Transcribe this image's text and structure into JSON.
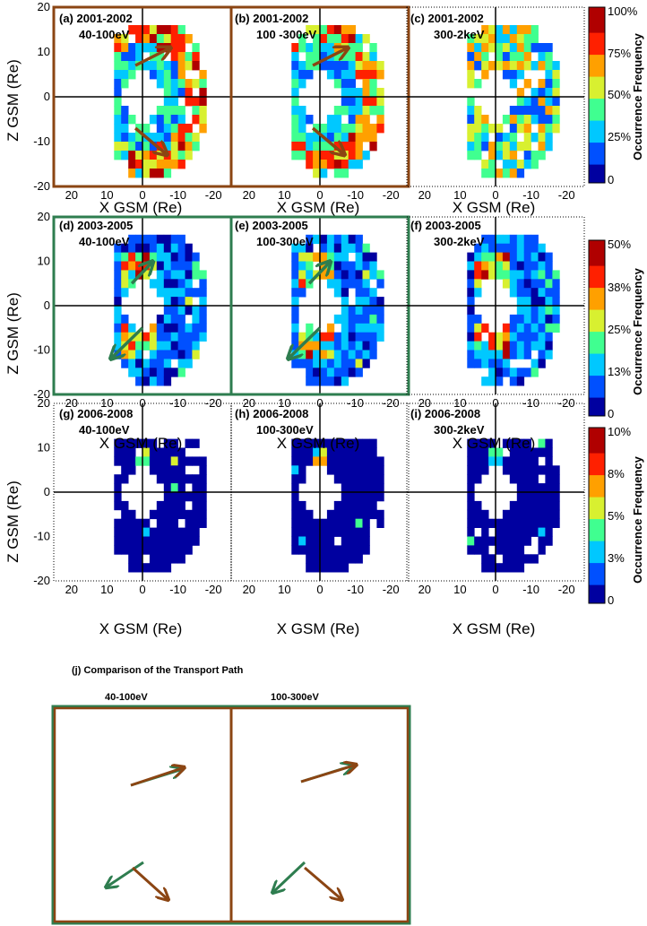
{
  "chart_data": {
    "type": "heatmap",
    "xlabel": "X GSM (Re)",
    "ylabel": "Z GSM (Re)",
    "x_ticks": [
      "20",
      "10",
      "0",
      "-10",
      "-20"
    ],
    "y_ticks": [
      "20",
      "10",
      "0",
      "-10",
      "-20"
    ],
    "xlim": [
      25,
      -25
    ],
    "ylim": [
      -20,
      20
    ],
    "colorbar_label": "Occurrence Frequency",
    "colorbar_ticks_row1": [
      "100%",
      "75%",
      "50%",
      "25%",
      "0"
    ],
    "colorbar_ticks_row2": [
      "50%",
      "38%",
      "25%",
      "13%",
      "0"
    ],
    "colorbar_ticks_row3": [
      "10%",
      "8%",
      "5%",
      "3%",
      "0"
    ],
    "colormap": [
      "#0000a0",
      "#0050ff",
      "#00c8ff",
      "#40ff90",
      "#d8f030",
      "#ffa000",
      "#ff2000",
      "#b00000"
    ],
    "panels": [
      {
        "label": "(a) 2001-2002",
        "energy": "40-100eV"
      },
      {
        "label": "(b) 2001-2002",
        "energy": "100 -300eV"
      },
      {
        "label": "(c) 2001-2002",
        "energy": "300-2keV"
      },
      {
        "label": "(d) 2003-2005",
        "energy": "40-100eV"
      },
      {
        "label": "(e) 2003-2005",
        "energy": "100-300eV"
      },
      {
        "label": "(f) 2003-2005",
        "energy": "300-2keV"
      },
      {
        "label": "(g) 2006-2008",
        "energy": "40-100eV"
      },
      {
        "label": "(h) 2006-2008",
        "energy": "100-300eV"
      },
      {
        "label": "(i) 2006-2008",
        "energy": "300-2keV"
      }
    ],
    "comparison": {
      "title": "(j) Comparison of the Transport Path",
      "labels": [
        "40-100eV",
        "100-300eV"
      ]
    },
    "colors": {
      "brown": "#8B4513",
      "green": "#2E7D4F"
    }
  }
}
